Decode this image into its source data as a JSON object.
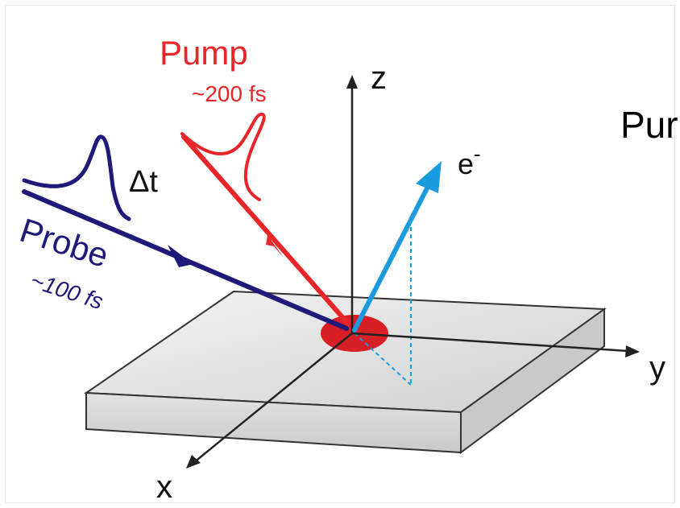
{
  "labels": {
    "pump": "Pump",
    "pump_duration": "~200 fs",
    "probe": "Probe",
    "probe_duration": "~100 fs",
    "delay": "Δt",
    "electron": "e",
    "electron_sup": "-",
    "axis_x": "x",
    "axis_y": "y",
    "axis_z": "z",
    "clipped_text": "Pur"
  },
  "colors": {
    "pump": "#e8262a",
    "probe": "#1f1a7a",
    "electron": "#1a9be0",
    "spot": "#d91f26",
    "axes": "#222222",
    "slab_top": "#e9e9e9",
    "slab_side": "#d6d6d6",
    "slab_edge": "#333333"
  }
}
